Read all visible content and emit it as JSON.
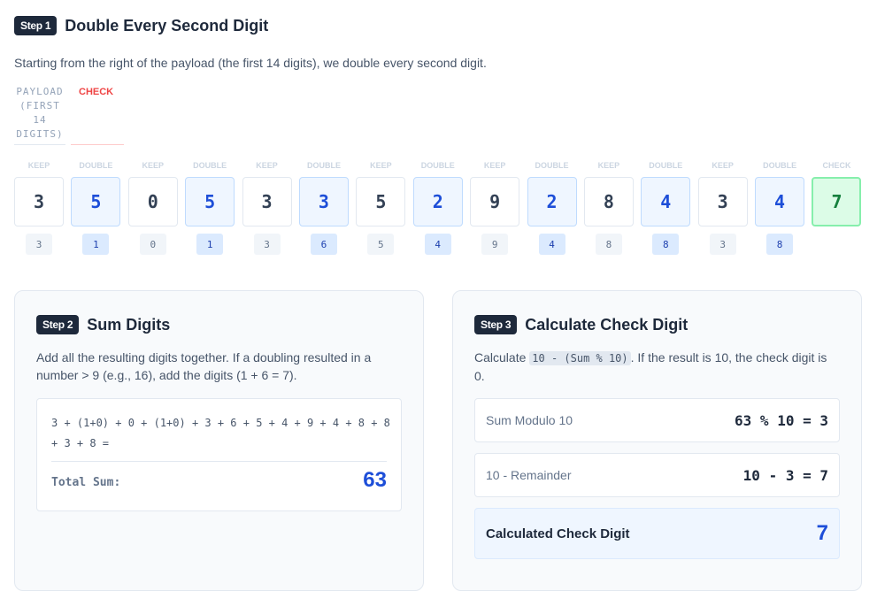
{
  "step1": {
    "badge": "Step 1",
    "title": "Double Every Second Digit",
    "desc": "Starting from the right of the payload (the first 14 digits), we double every second digit.",
    "legend_payload": "PAYLOAD (FIRST 14 DIGITS)",
    "legend_check": "CHECK",
    "digits": [
      {
        "label": "KEEP",
        "value": "3",
        "result": "3",
        "type": "keep"
      },
      {
        "label": "DOUBLE",
        "value": "5",
        "result": "1",
        "type": "double"
      },
      {
        "label": "KEEP",
        "value": "0",
        "result": "0",
        "type": "keep"
      },
      {
        "label": "DOUBLE",
        "value": "5",
        "result": "1",
        "type": "double"
      },
      {
        "label": "KEEP",
        "value": "3",
        "result": "3",
        "type": "keep"
      },
      {
        "label": "DOUBLE",
        "value": "3",
        "result": "6",
        "type": "double"
      },
      {
        "label": "KEEP",
        "value": "5",
        "result": "5",
        "type": "keep"
      },
      {
        "label": "DOUBLE",
        "value": "2",
        "result": "4",
        "type": "double"
      },
      {
        "label": "KEEP",
        "value": "9",
        "result": "9",
        "type": "keep"
      },
      {
        "label": "DOUBLE",
        "value": "2",
        "result": "4",
        "type": "double"
      },
      {
        "label": "KEEP",
        "value": "8",
        "result": "8",
        "type": "keep"
      },
      {
        "label": "DOUBLE",
        "value": "4",
        "result": "8",
        "type": "double"
      },
      {
        "label": "KEEP",
        "value": "3",
        "result": "3",
        "type": "keep"
      },
      {
        "label": "DOUBLE",
        "value": "4",
        "result": "8",
        "type": "double"
      },
      {
        "label": "CHECK",
        "value": "7",
        "result": null,
        "type": "check"
      }
    ]
  },
  "step2": {
    "badge": "Step 2",
    "title": "Sum Digits",
    "desc": "Add all the resulting digits together. If a doubling resulted in a number > 9 (e.g., 16), add the digits (1 + 6 = 7).",
    "expression": "3 + (1+0) + 0 + (1+0) + 3 + 6 + 5 + 4 + 9 + 4 + 8 + 8 + 3 + 8 =",
    "total_label": "Total Sum:",
    "total": "63"
  },
  "step3": {
    "badge": "Step 3",
    "title": "Calculate Check Digit",
    "desc_pre": "Calculate ",
    "desc_code": "10 - (Sum % 10)",
    "desc_post": ". If the result is 10, the check digit is 0.",
    "rows": [
      {
        "label": "Sum Modulo 10",
        "value": "63 % 10 = 3"
      },
      {
        "label": "10 - Remainder",
        "value": "10 - 3 = 7"
      }
    ],
    "final_label": "Calculated Check Digit",
    "final_value": "7"
  },
  "colors": {
    "accent": "#1d4ed8",
    "check": "#15803d",
    "badge": "#1e293b",
    "legend_check": "#ef4444"
  }
}
